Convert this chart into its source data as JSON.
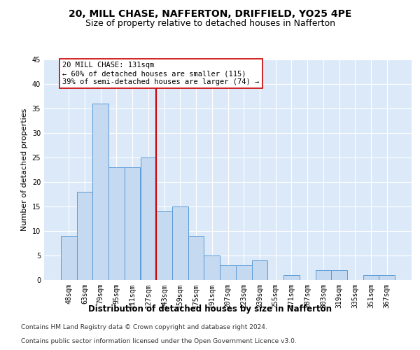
{
  "title": "20, MILL CHASE, NAFFERTON, DRIFFIELD, YO25 4PE",
  "subtitle": "Size of property relative to detached houses in Nafferton",
  "xlabel": "Distribution of detached houses by size in Nafferton",
  "ylabel": "Number of detached properties",
  "categories": [
    "48sqm",
    "63sqm",
    "79sqm",
    "95sqm",
    "111sqm",
    "127sqm",
    "143sqm",
    "159sqm",
    "175sqm",
    "191sqm",
    "207sqm",
    "223sqm",
    "239sqm",
    "255sqm",
    "271sqm",
    "287sqm",
    "303sqm",
    "319sqm",
    "335sqm",
    "351sqm",
    "367sqm"
  ],
  "values": [
    9,
    18,
    36,
    23,
    23,
    25,
    14,
    15,
    9,
    5,
    3,
    3,
    4,
    0,
    1,
    0,
    2,
    2,
    0,
    1,
    1
  ],
  "bar_color": "#c5d9f0",
  "bar_edge_color": "#5b9bd5",
  "vline_x": 5.5,
  "vline_color": "#cc0000",
  "annotation_text": "20 MILL CHASE: 131sqm\n← 60% of detached houses are smaller (115)\n39% of semi-detached houses are larger (74) →",
  "annotation_box_color": "#ffffff",
  "annotation_box_edge_color": "#cc0000",
  "ylim": [
    0,
    45
  ],
  "yticks": [
    0,
    5,
    10,
    15,
    20,
    25,
    30,
    35,
    40,
    45
  ],
  "footnote_line1": "Contains HM Land Registry data © Crown copyright and database right 2024.",
  "footnote_line2": "Contains public sector information licensed under the Open Government Licence v3.0.",
  "bg_color": "#dce9f8",
  "title_fontsize": 10,
  "subtitle_fontsize": 9,
  "xlabel_fontsize": 8.5,
  "ylabel_fontsize": 8,
  "tick_fontsize": 7,
  "annotation_fontsize": 7.5,
  "footnote_fontsize": 6.5
}
